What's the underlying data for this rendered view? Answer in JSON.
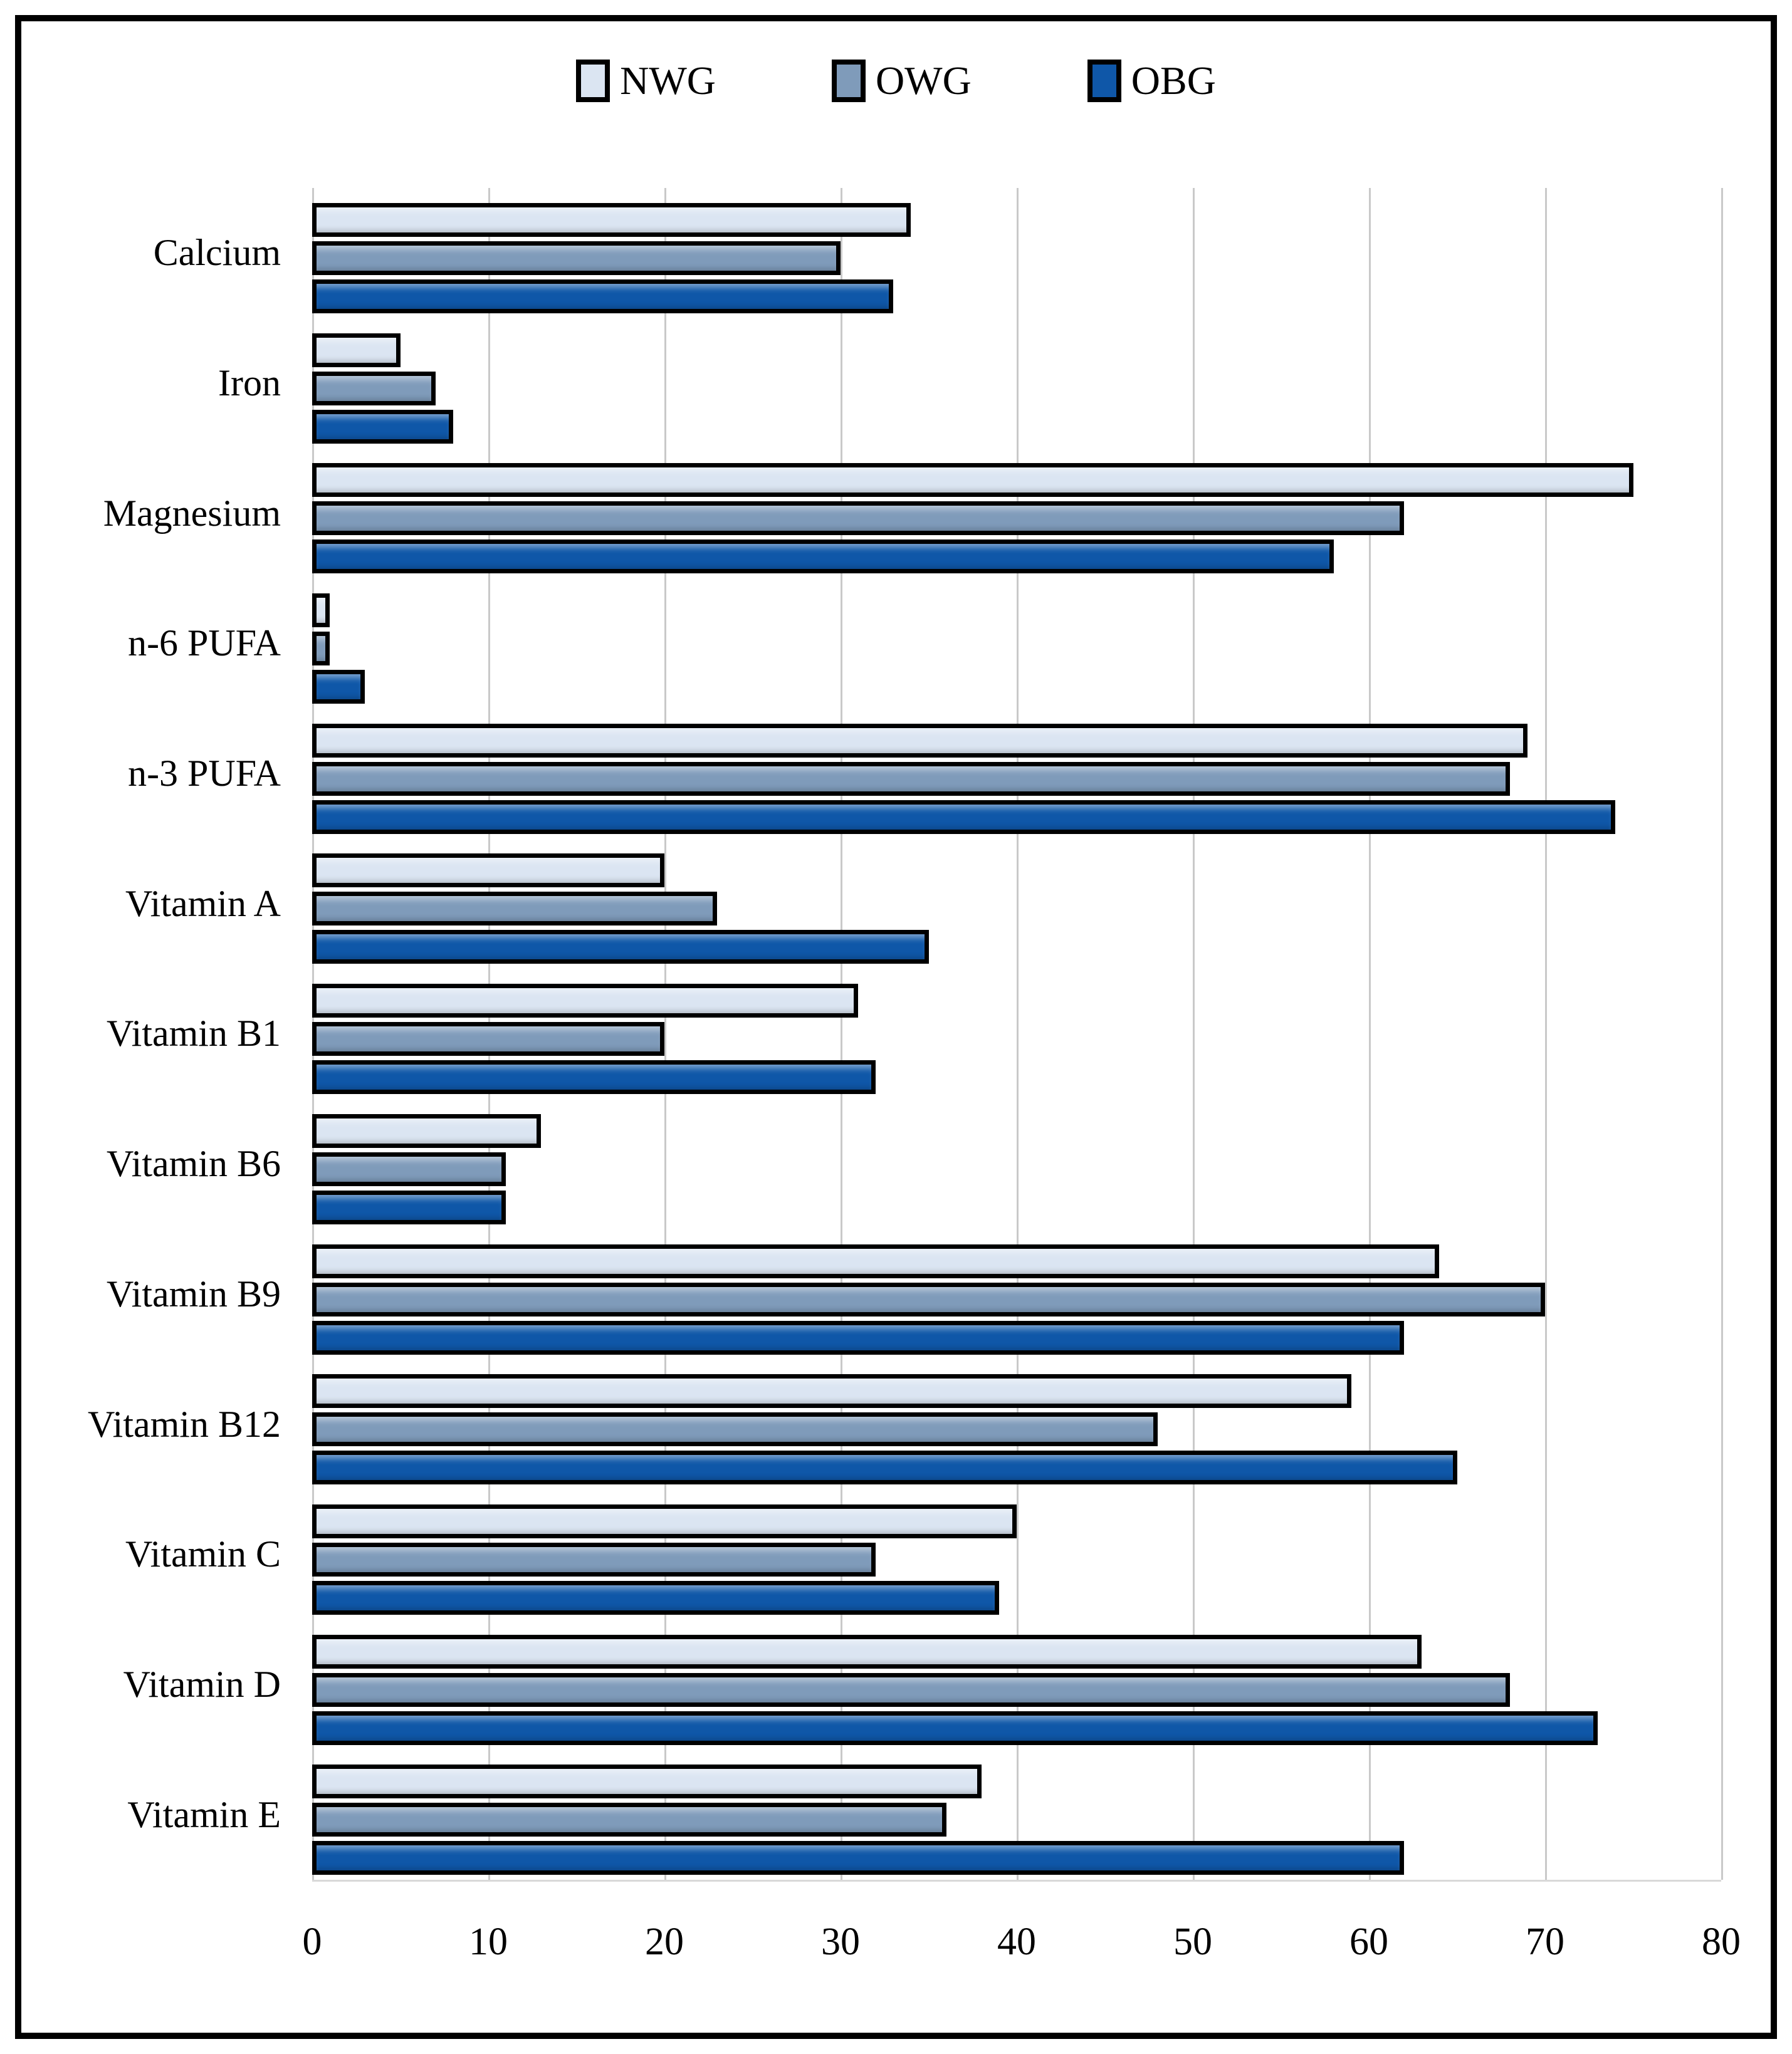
{
  "chart_data": {
    "type": "bar",
    "orientation": "horizontal",
    "title": "",
    "xlabel": "",
    "ylabel": "",
    "categories": [
      "Calcium",
      "Iron",
      "Magnesium",
      "n-6 PUFA",
      "n-3 PUFA",
      "Vitamin A",
      "Vitamin B1",
      "Vitamin B6",
      "Vitamin B9",
      "Vitamin B12",
      "Vitamin C",
      "Vitamin D",
      "Vitamin E"
    ],
    "series": [
      {
        "name": "NWG",
        "color": "#dbe5f2",
        "values": [
          34,
          5,
          75,
          1,
          69,
          20,
          31,
          13,
          64,
          59,
          40,
          63,
          38
        ]
      },
      {
        "name": "OWG",
        "color": "#7f9bba",
        "values": [
          30,
          7,
          62,
          1,
          68,
          23,
          20,
          11,
          70,
          48,
          32,
          68,
          36
        ]
      },
      {
        "name": "OBG",
        "color": "#0f57a8",
        "values": [
          33,
          8,
          58,
          3,
          74,
          35,
          32,
          11,
          62,
          65,
          39,
          73,
          62
        ]
      }
    ],
    "xlim": [
      0,
      80
    ],
    "x_ticks": [
      0,
      10,
      20,
      30,
      40,
      50,
      60,
      70,
      80
    ],
    "grid": "vertical-only",
    "gridline_color": "#c9c9c9",
    "bar_border_color": "#000000",
    "legend_position": "top-center",
    "frame_border_color": "#000000"
  }
}
